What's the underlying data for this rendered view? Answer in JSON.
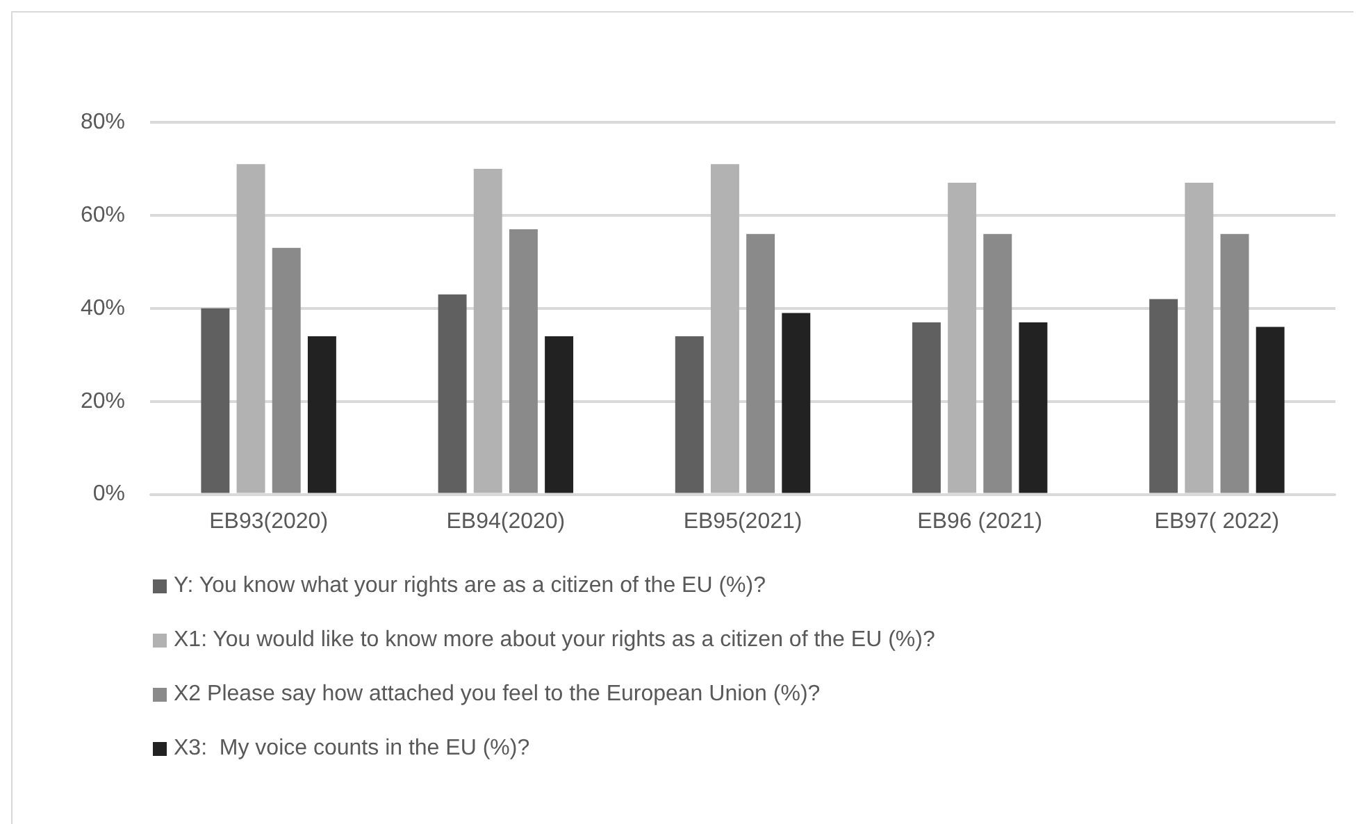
{
  "chart_data": {
    "type": "bar",
    "categories": [
      "EB93(2020)",
      "EB94(2020)",
      "EB95(2021)",
      "EB96 (2021)",
      "EB97( 2022)"
    ],
    "series": [
      {
        "name": "Y: You know what your rights are as a citizen of the EU (%)?",
        "color": "#606060",
        "values": [
          40,
          43,
          34,
          37,
          42
        ]
      },
      {
        "name": "X1: You would like to know more about your rights as a citizen of the EU (%)?",
        "color": "#b2b2b2",
        "values": [
          71,
          70,
          71,
          67,
          67
        ]
      },
      {
        "name": "X2 Please say how attached you feel to the European Union (%)?",
        "color": "#8a8a8a",
        "values": [
          53,
          57,
          56,
          56,
          56
        ]
      },
      {
        "name": "X3:  My voice counts in the EU (%)?",
        "color": "#222222",
        "values": [
          34,
          34,
          39,
          37,
          36
        ]
      }
    ],
    "ylim": [
      0,
      80
    ],
    "yticks": [
      {
        "value": 0,
        "label": "0%"
      },
      {
        "value": 20,
        "label": "20%"
      },
      {
        "value": 40,
        "label": "40%"
      },
      {
        "value": 60,
        "label": "60%"
      },
      {
        "value": 80,
        "label": "80%"
      }
    ],
    "grid": "y",
    "legend": "bottom"
  }
}
